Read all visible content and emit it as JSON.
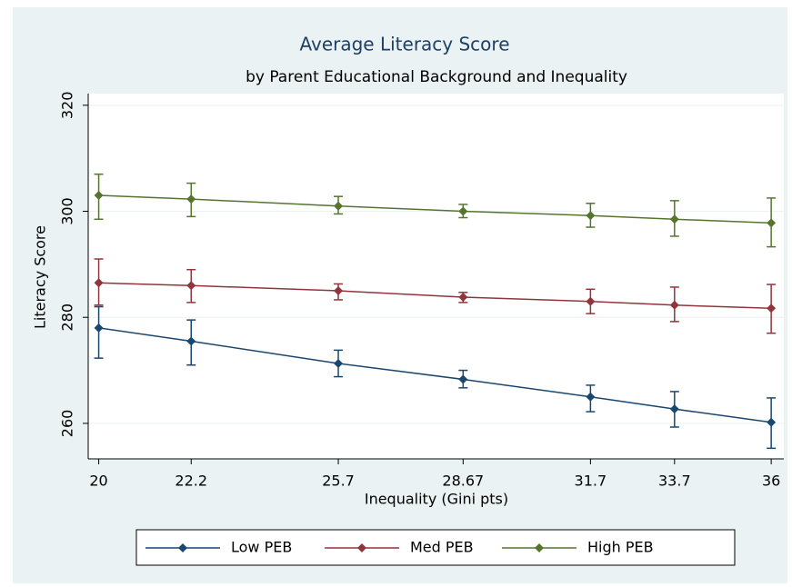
{
  "chart_data": {
    "type": "line",
    "title": "Average Literacy Score",
    "subtitle": "by Parent Educational Background and Inequality",
    "x_label": "Inequality (Gini pts)",
    "y_label": "Literacy Score",
    "x": [
      20,
      22.2,
      25.7,
      28.67,
      31.7,
      33.7,
      36
    ],
    "xlim": [
      19.75,
      36.3
    ],
    "xticks": [
      20,
      22.2,
      25.7,
      28.67,
      31.7,
      33.7,
      36
    ],
    "ylim": [
      253.3,
      322.2
    ],
    "yticks": [
      260,
      280,
      300,
      320
    ],
    "grid": true,
    "legend": "bottom",
    "series": [
      {
        "name": "Low PEB",
        "color": "#1a476f",
        "values": [
          278,
          275.5,
          271.3,
          268.3,
          265,
          262.7,
          260.2
        ],
        "lower": [
          272.3,
          271,
          268.8,
          266.7,
          262.2,
          259.3,
          255.3
        ],
        "upper": [
          282,
          279.5,
          273.8,
          270,
          267.2,
          266,
          264.8
        ]
      },
      {
        "name": "Med PEB",
        "color": "#90353b",
        "values": [
          286.5,
          286,
          285,
          283.8,
          283,
          282.3,
          281.7
        ],
        "lower": [
          282.3,
          282.8,
          283.3,
          282.8,
          280.7,
          279.2,
          277
        ],
        "upper": [
          291,
          289,
          286.3,
          284.7,
          285.3,
          285.7,
          286.2
        ]
      },
      {
        "name": "High PEB",
        "color": "#55752f",
        "values": [
          303,
          302.3,
          301,
          300,
          299.2,
          298.5,
          297.8
        ],
        "lower": [
          298.5,
          299,
          299.5,
          298.8,
          297,
          295.3,
          293.3
        ],
        "upper": [
          307,
          305.3,
          302.8,
          301.3,
          301.5,
          302,
          302.5
        ]
      }
    ]
  }
}
